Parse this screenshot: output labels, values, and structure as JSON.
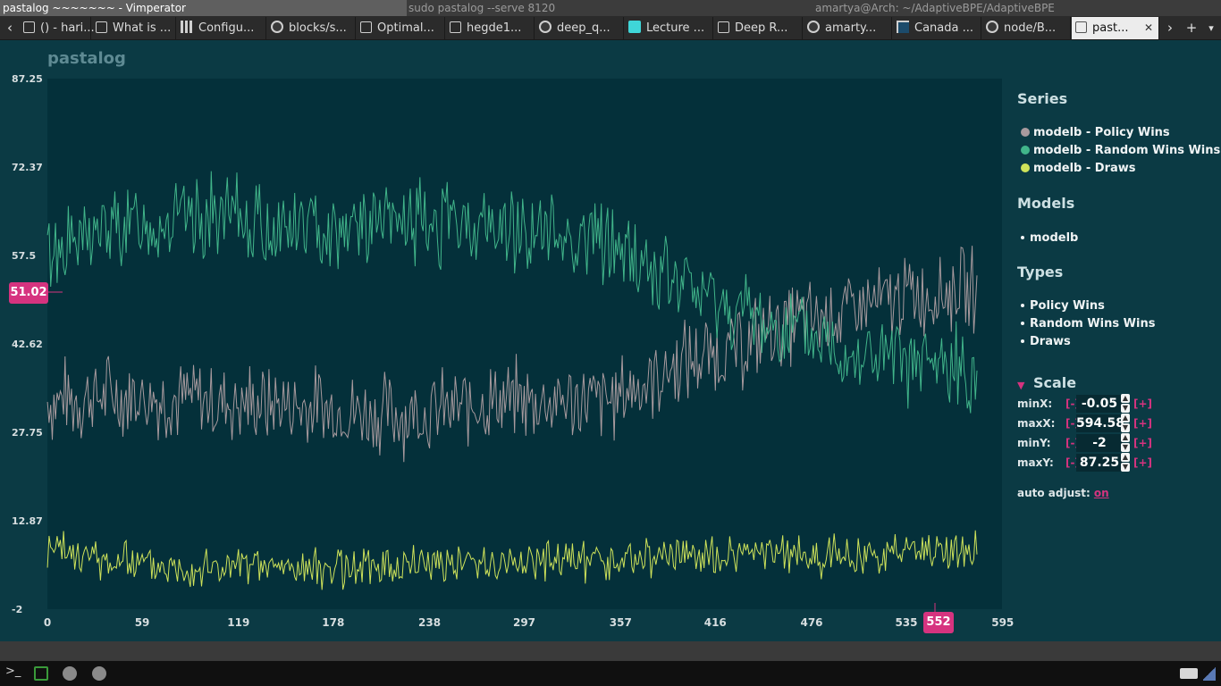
{
  "window": {
    "title": "pastalog ~~~~~~~ - Vimperator",
    "terminal_title": "sudo pastalog --serve 8120",
    "other_title": "amartya@Arch: ~/AdaptiveBPE/AdaptiveBPE"
  },
  "tabs": [
    {
      "label": "() - hari...",
      "icon": "doc-icon"
    },
    {
      "label": "What is ...",
      "icon": "doc-icon"
    },
    {
      "label": "Configu...",
      "icon": "config-icon"
    },
    {
      "label": "blocks/s...",
      "icon": "github-icon"
    },
    {
      "label": "Optimal...",
      "icon": "doc-icon"
    },
    {
      "label": "hegde1...",
      "icon": "doc-icon"
    },
    {
      "label": "deep_q...",
      "icon": "github-icon"
    },
    {
      "label": "Lecture ...",
      "icon": "lecture-icon"
    },
    {
      "label": "Deep R...",
      "icon": "doc-icon"
    },
    {
      "label": "amarty...",
      "icon": "github-icon"
    },
    {
      "label": "Canada ...",
      "icon": "canada-icon"
    },
    {
      "label": "node/B...",
      "icon": "github-icon"
    },
    {
      "label": "past...",
      "icon": "doc-icon",
      "active": true
    }
  ],
  "tabbar": {
    "back": "‹",
    "forward": "›",
    "new_tab": "+",
    "menu": "▾",
    "close": "✕"
  },
  "app": {
    "title": "pastalog",
    "hover_y": "51.02",
    "hover_x": "552"
  },
  "sidebar": {
    "series_title": "Series",
    "series": [
      {
        "label": "modelb - Policy Wins",
        "color": "#a89a9e"
      },
      {
        "label": "modelb - Random Wins Wins",
        "color": "#41b58a"
      },
      {
        "label": "modelb - Draws",
        "color": "#cfe35a"
      }
    ],
    "models_title": "Models",
    "models": [
      "modelb"
    ],
    "types_title": "Types",
    "types": [
      "Policy Wins",
      "Random Wins Wins",
      "Draws"
    ],
    "scale_title": "Scale",
    "scale": [
      {
        "label": "minX:",
        "minus": "[-]",
        "value": "-0.05",
        "plus": "[+]"
      },
      {
        "label": "maxX:",
        "minus": "[-]",
        "value": "594.58",
        "plus": "[+]"
      },
      {
        "label": "minY:",
        "minus": "[-]",
        "value": "-2",
        "plus": "[+]"
      },
      {
        "label": "maxY:",
        "minus": "[-]",
        "value": "87.25",
        "plus": "[+]"
      }
    ],
    "auto_adjust_label": "auto adjust:",
    "auto_adjust_value": "on"
  },
  "chart_data": {
    "type": "line",
    "title": "",
    "xlabel": "",
    "ylabel": "",
    "xlim": [
      -0.05,
      594.58
    ],
    "ylim": [
      -2,
      87.25
    ],
    "yticks": [
      "87.25",
      "72.37",
      "57.5",
      "42.62",
      "27.75",
      "12.87",
      "-2"
    ],
    "xticks": [
      "0",
      "59",
      "119",
      "178",
      "238",
      "297",
      "357",
      "416",
      "476",
      "535",
      "595"
    ],
    "grid": false,
    "legend": "right panel",
    "series": [
      {
        "name": "modelb - Policy Wins",
        "color": "#a89a9e",
        "trend": [
          [
            0,
            33
          ],
          [
            40,
            34
          ],
          [
            100,
            33
          ],
          [
            160,
            32
          ],
          [
            200,
            31
          ],
          [
            240,
            31
          ],
          [
            280,
            33
          ],
          [
            320,
            33
          ],
          [
            350,
            33
          ],
          [
            370,
            36
          ],
          [
            400,
            40
          ],
          [
            430,
            42
          ],
          [
            460,
            46
          ],
          [
            500,
            48
          ],
          [
            540,
            51
          ],
          [
            580,
            52
          ],
          [
            580,
            52
          ]
        ],
        "amplitude": 6,
        "seed": 7
      },
      {
        "name": "modelb - Random Wins Wins",
        "color": "#41b58a",
        "trend": [
          [
            0,
            58
          ],
          [
            40,
            62
          ],
          [
            100,
            64
          ],
          [
            160,
            62
          ],
          [
            200,
            63
          ],
          [
            240,
            63
          ],
          [
            280,
            62
          ],
          [
            320,
            61
          ],
          [
            350,
            60
          ],
          [
            370,
            56
          ],
          [
            400,
            52
          ],
          [
            430,
            48
          ],
          [
            460,
            45
          ],
          [
            500,
            41
          ],
          [
            540,
            39
          ],
          [
            580,
            38
          ]
        ],
        "amplitude": 6,
        "seed": 13
      },
      {
        "name": "modelb - Draws",
        "color": "#cfe35a",
        "trend": [
          [
            0,
            8
          ],
          [
            40,
            6
          ],
          [
            100,
            5
          ],
          [
            160,
            5
          ],
          [
            200,
            5
          ],
          [
            240,
            6
          ],
          [
            280,
            6
          ],
          [
            320,
            6
          ],
          [
            350,
            6
          ],
          [
            400,
            7
          ],
          [
            460,
            7
          ],
          [
            500,
            7
          ],
          [
            540,
            8
          ],
          [
            580,
            8
          ]
        ],
        "amplitude": 3,
        "seed": 23
      }
    ],
    "n_points": 580
  }
}
